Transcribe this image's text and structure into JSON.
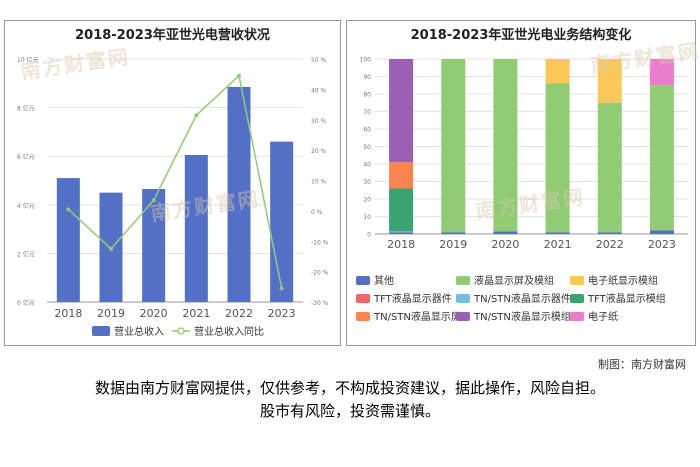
{
  "left_chart_title": "2018-2023年亚世光电营收状况",
  "right_chart_title": "2018-2023年亚世光电业务结构变化",
  "source_note": "制图：南方财富网",
  "disclaimer_line1": "数据由南方财富网提供，仅供参考，不构成投资建议，据此操作，风险自担。",
  "disclaimer_line2": "股市有风险，投资需谨慎。",
  "watermark_text": "南方财富网",
  "chart_data": [
    {
      "type": "bar",
      "title": "2018-2023年亚世光电营收状况",
      "categories": [
        "2018",
        "2019",
        "2020",
        "2021",
        "2022",
        "2023"
      ],
      "ylim": [
        0,
        10
      ],
      "y_ticks": [
        "0 亿元",
        "2 亿元",
        "4 亿元",
        "6 亿元",
        "8 亿元",
        "10 亿元"
      ],
      "y2lim": [
        -30,
        50
      ],
      "y2_ticks": [
        "-30 %",
        "-20 %",
        "-10 %",
        "0 %",
        "10 %",
        "20 %",
        "30 %",
        "40 %",
        "50 %"
      ],
      "series": [
        {
          "name": "营业总收入",
          "kind": "bar",
          "color": "#5470c6",
          "values": [
            5.1,
            4.5,
            4.65,
            6.05,
            8.85,
            6.6
          ]
        },
        {
          "name": "营业总收入同比",
          "kind": "line",
          "axis": "right",
          "color": "#91cc75",
          "values": [
            0.5,
            -12.5,
            3.5,
            31.5,
            44.5,
            -25.5
          ]
        }
      ],
      "grid": true,
      "legend": "bottom"
    },
    {
      "type": "bar",
      "stacked": true,
      "title": "2018-2023年亚世光电业务结构变化",
      "categories": [
        "2018",
        "2019",
        "2020",
        "2021",
        "2022",
        "2023"
      ],
      "ylim": [
        0,
        100
      ],
      "y_ticks": [
        "0",
        "10",
        "20",
        "30",
        "40",
        "50",
        "60",
        "70",
        "80",
        "90",
        "100"
      ],
      "series": [
        {
          "name": "其他",
          "color": "#5470c6",
          "values": [
            1,
            1,
            1.5,
            1,
            1,
            2
          ]
        },
        {
          "name": "液晶显示屏及模组",
          "color": "#91cc75",
          "values": [
            0,
            99,
            98.5,
            85,
            74,
            83
          ]
        },
        {
          "name": "电子纸显示模组",
          "color": "#fac858",
          "values": [
            0,
            0,
            0,
            14,
            25,
            0
          ]
        },
        {
          "name": "TFT液晶显示器件",
          "color": "#ee6666",
          "values": [
            0,
            0,
            0,
            0,
            0,
            0
          ]
        },
        {
          "name": "TN/STN液晶显示器件",
          "color": "#73c0de",
          "values": [
            0.5,
            0,
            0,
            0,
            0,
            0
          ]
        },
        {
          "name": "TFT液晶显示模组",
          "color": "#3ba272",
          "values": [
            24.5,
            0,
            0,
            0,
            0,
            0
          ]
        },
        {
          "name": "TN/STN液晶显示屏",
          "color": "#fc8452",
          "values": [
            15,
            0,
            0,
            0,
            0,
            0
          ]
        },
        {
          "name": "TN/STN液晶显示模组",
          "color": "#9a60b4",
          "values": [
            59,
            0,
            0,
            0,
            0,
            0
          ]
        },
        {
          "name": "电子纸",
          "color": "#ea7ccc",
          "values": [
            0,
            0,
            0,
            0,
            0,
            15
          ]
        }
      ],
      "grid": true,
      "legend": "bottom"
    }
  ]
}
